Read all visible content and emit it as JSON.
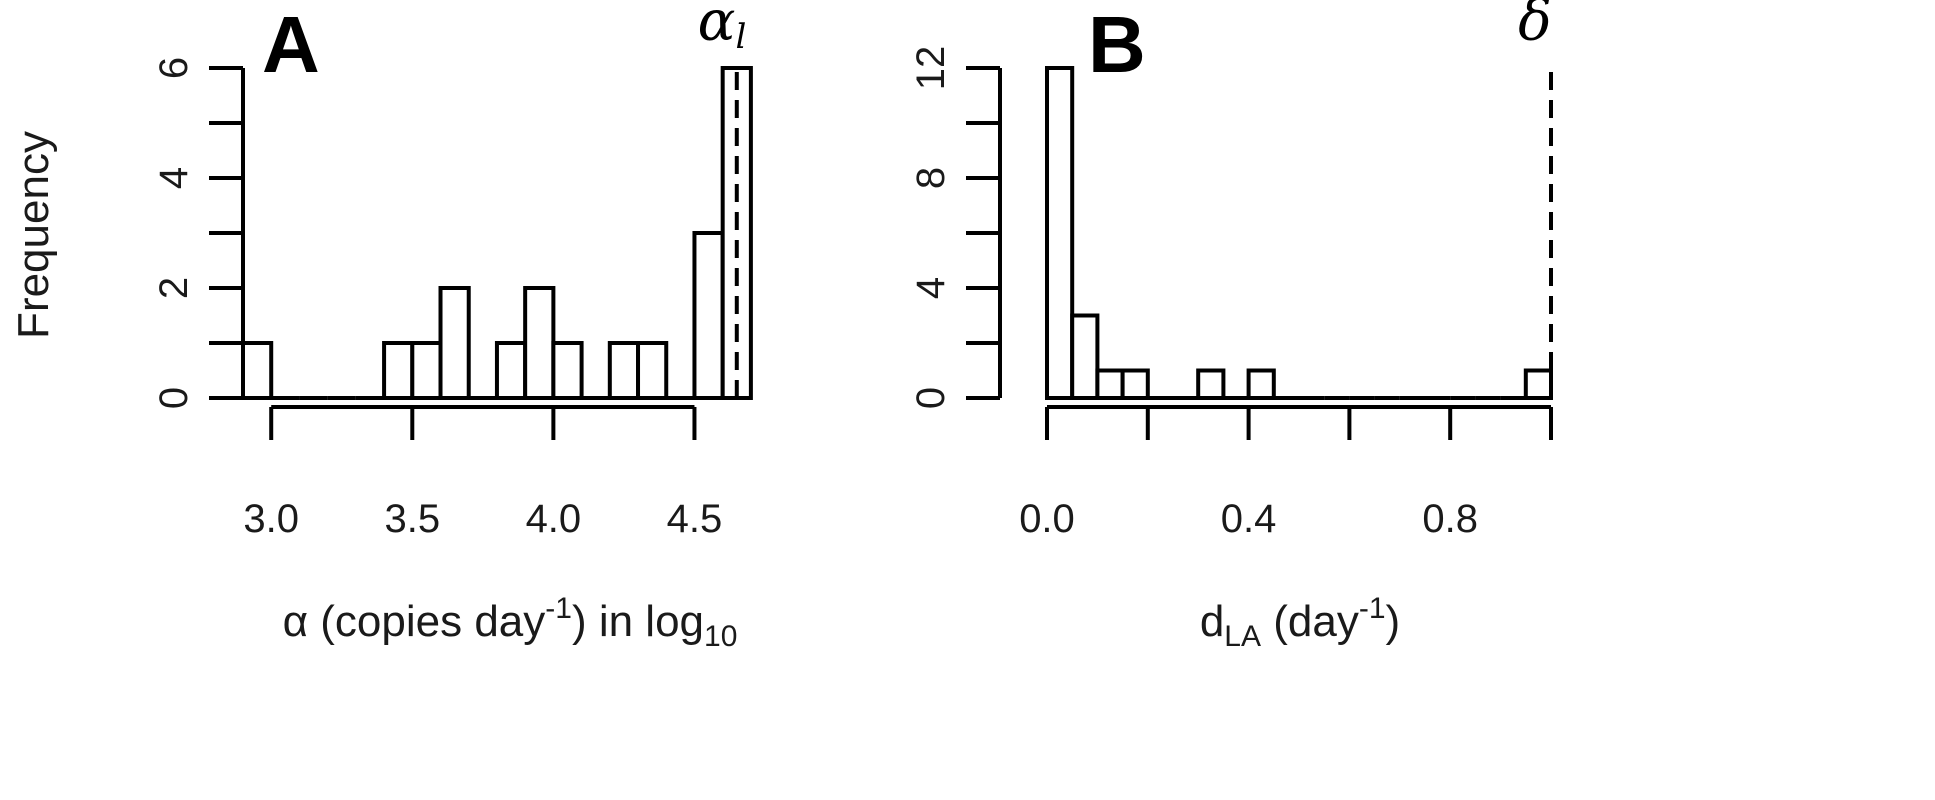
{
  "ylabel": "Frequency",
  "chart_data": [
    {
      "type": "bar",
      "panel_label": "A",
      "xlabel_prefix": "α (copies day",
      "xlabel_sup": "-1",
      "xlabel_mid": ") in log",
      "xlabel_sub": "10",
      "ylabel": "Frequency",
      "xlim": [
        2.9,
        4.75
      ],
      "ylim": [
        0,
        6
      ],
      "xticks": [
        "3.0",
        "3.5",
        "4.0",
        "4.5"
      ],
      "xtick_values": [
        3.0,
        3.5,
        4.0,
        4.5
      ],
      "yticks": [
        "0",
        "2",
        "4",
        "6"
      ],
      "ytick_values": [
        0,
        2,
        4,
        6
      ],
      "bin_width": 0.1,
      "bin_edges_start": 2.9,
      "counts": [
        1,
        0,
        0,
        0,
        0,
        1,
        1,
        2,
        0,
        1,
        2,
        1,
        0,
        1,
        1,
        0,
        3,
        6
      ],
      "reference_line": {
        "x": 4.65,
        "label": "α",
        "sub": "l"
      },
      "grid": false
    },
    {
      "type": "bar",
      "panel_label": "B",
      "xlabel_prefix": "d",
      "xlabel_sub": "LA",
      "xlabel_mid": " (day",
      "xlabel_sup": "-1",
      "xlabel_suffix": ")",
      "xlim": [
        0,
        1.0
      ],
      "ylim": [
        0,
        12
      ],
      "xticks": [
        "0.0",
        "0.4",
        "0.8"
      ],
      "xtick_values": [
        0.0,
        0.4,
        0.8
      ],
      "minor_tick_values": [
        0.2,
        0.6,
        1.0
      ],
      "yticks": [
        "0",
        "4",
        "8",
        "12"
      ],
      "ytick_values": [
        0,
        4,
        8,
        12
      ],
      "bin_width": 0.05,
      "bin_edges_start": 0.0,
      "counts": [
        12,
        3,
        1,
        1,
        0,
        0,
        1,
        0,
        1,
        0,
        0,
        0,
        0,
        0,
        0,
        0,
        0,
        0,
        0,
        1
      ],
      "reference_line": {
        "x": 1.0,
        "label": "δ",
        "sub": ""
      },
      "grid": false
    }
  ]
}
